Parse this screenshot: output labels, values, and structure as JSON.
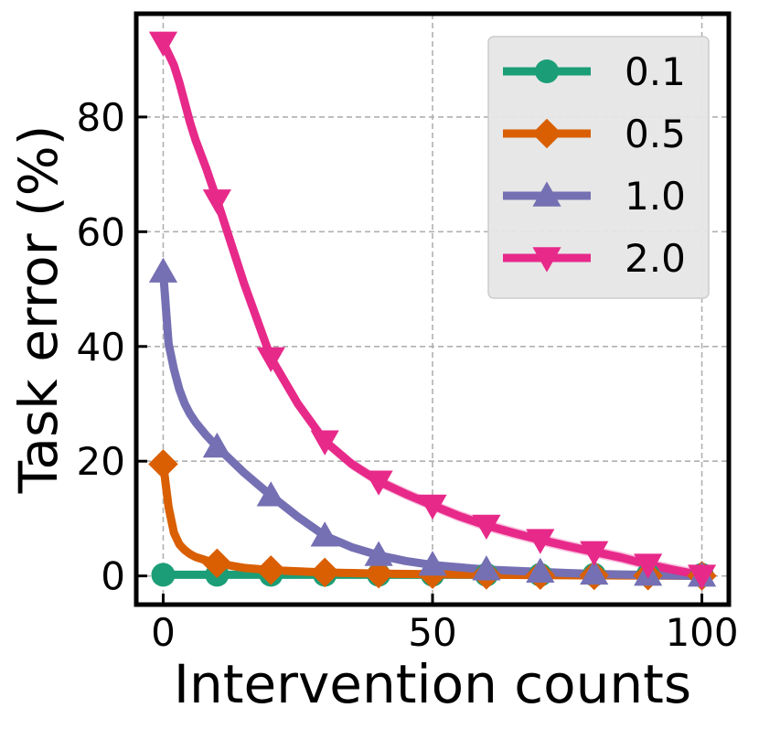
{
  "chart_data": {
    "type": "line",
    "title": "",
    "xlabel": "Intervention counts",
    "ylabel": "Task error (%)",
    "xlim": [
      -5,
      105
    ],
    "ylim": [
      -5,
      98
    ],
    "x_ticks": [
      0,
      50,
      100
    ],
    "y_ticks": [
      0,
      20,
      40,
      60,
      80
    ],
    "grid": true,
    "legend_position": "top-right",
    "x_curve": [
      0,
      1,
      2,
      3,
      4,
      5,
      6,
      8,
      10,
      15,
      20,
      25,
      30,
      35,
      40,
      45,
      50,
      55,
      60,
      65,
      70,
      75,
      80,
      85,
      90,
      95,
      100
    ],
    "marker_x": [
      0,
      10,
      20,
      30,
      40,
      50,
      60,
      70,
      80,
      90,
      100
    ],
    "series": [
      {
        "name": "0.1",
        "color": "#1b9e77",
        "marker": "circle",
        "values": [
          0.2,
          0.2,
          0.2,
          0.2,
          0.2,
          0.2,
          0.2,
          0.2,
          0.2,
          0.2,
          0.2,
          0.2,
          0.2,
          0.2,
          0.2,
          0.2,
          0.2,
          0.2,
          0.2,
          0.2,
          0.2,
          0.2,
          0.2,
          0.2,
          0.2,
          0.2,
          0.2
        ],
        "band": 0.0
      },
      {
        "name": "0.5",
        "color": "#d95f02",
        "marker": "diamond",
        "values": [
          19.5,
          12.0,
          7.5,
          5.5,
          4.5,
          3.8,
          3.3,
          2.7,
          2.2,
          1.4,
          1.0,
          0.8,
          0.6,
          0.5,
          0.4,
          0.35,
          0.3,
          0.25,
          0.2,
          0.18,
          0.15,
          0.12,
          0.1,
          0.08,
          0.06,
          0.04,
          0.02
        ],
        "band": 0.0
      },
      {
        "name": "1.0",
        "color": "#7570b3",
        "marker": "triangle-up",
        "values": [
          53.0,
          40.5,
          36.0,
          32.5,
          30.0,
          28.2,
          26.8,
          24.5,
          22.5,
          18.0,
          14.0,
          10.3,
          7.0,
          5.0,
          3.6,
          2.6,
          1.9,
          1.5,
          1.1,
          0.9,
          0.7,
          0.5,
          0.35,
          0.25,
          0.15,
          0.08,
          0.0
        ],
        "band": 0.4
      },
      {
        "name": "2.0",
        "color": "#e7298a",
        "marker": "triangle-down",
        "values": [
          93.0,
          91.0,
          89.0,
          86.0,
          82.5,
          79.0,
          76.0,
          71.0,
          65.5,
          51.0,
          38.0,
          30.0,
          23.5,
          19.5,
          16.5,
          14.3,
          12.3,
          10.4,
          8.8,
          7.5,
          6.3,
          5.2,
          4.2,
          3.2,
          2.0,
          1.0,
          0.1
        ],
        "band": 1.0
      }
    ]
  }
}
